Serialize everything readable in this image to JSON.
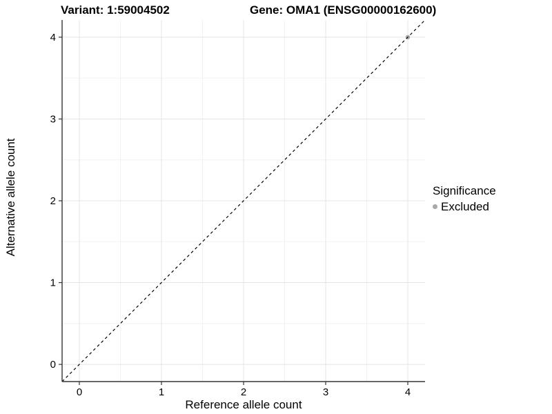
{
  "chart_data": {
    "type": "scatter",
    "title_left": "Variant: 1:59004502",
    "title_right": "Gene: OMA1 (ENSG00000162600)",
    "xlabel": "Reference allele count",
    "ylabel": "Alternative allele count",
    "xlim": [
      -0.21,
      4.21
    ],
    "ylim": [
      -0.21,
      4.21
    ],
    "x_ticks": [
      0,
      1,
      2,
      3,
      4
    ],
    "y_ticks": [
      0,
      1,
      2,
      3,
      4
    ],
    "x_minor_ticks": [
      0.5,
      1.5,
      2.5,
      3.5
    ],
    "y_minor_ticks": [
      0.5,
      1.5,
      2.5,
      3.5
    ],
    "grid": "on",
    "legend_position": "right",
    "reference_line": {
      "slope": 1,
      "intercept": 0,
      "style": "dashed"
    },
    "series": [
      {
        "name": "Excluded",
        "points": [
          {
            "x": 4,
            "y": 4
          }
        ]
      }
    ],
    "legend": {
      "title": "Significance",
      "entries": [
        {
          "label": "Excluded",
          "color": "#a8a8a8"
        }
      ]
    }
  },
  "colors": {
    "background": "#ffffff",
    "excluded_point": "#a8a8a8",
    "grid_major": "#e4e4e4",
    "grid_minor": "#f2f2f2",
    "axis_line": "#333333",
    "reference_line": "#000000",
    "text": "#000000"
  }
}
